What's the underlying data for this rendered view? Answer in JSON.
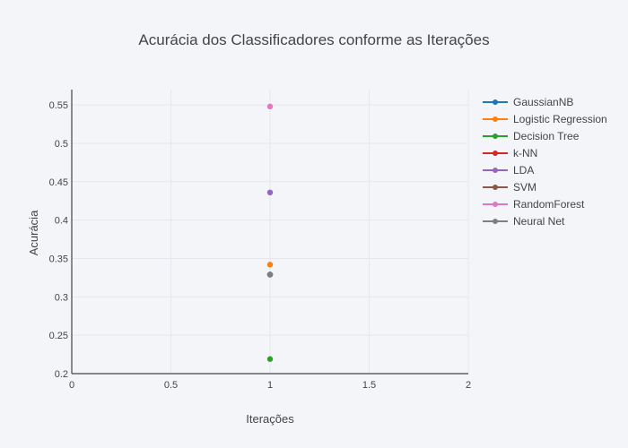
{
  "chart_data": {
    "type": "scatter",
    "title": "Acurácia dos Classificadores conforme as Iterações",
    "xlabel": "Iterações",
    "ylabel": "Acurácia",
    "xlim": [
      0,
      2
    ],
    "ylim": [
      0.2,
      0.57
    ],
    "xticks": [
      "0",
      "0.5",
      "1",
      "1.5",
      "2"
    ],
    "yticks": [
      "0.2",
      "0.25",
      "0.3",
      "0.35",
      "0.4",
      "0.45",
      "0.5",
      "0.55"
    ],
    "grid": true,
    "legend_position": "right",
    "series": [
      {
        "name": "GaussianNB",
        "color": "#1f77b4",
        "x": [
          1
        ],
        "y": [
          0.329
        ]
      },
      {
        "name": "Logistic Regression",
        "color": "#ff7f0e",
        "x": [
          1
        ],
        "y": [
          0.342
        ]
      },
      {
        "name": "Decision Tree",
        "color": "#2ca02c",
        "x": [
          1
        ],
        "y": [
          0.219
        ]
      },
      {
        "name": "k-NN",
        "color": "#d62728",
        "x": [
          1
        ],
        "y": [
          0.329
        ]
      },
      {
        "name": "LDA",
        "color": "#9467bd",
        "x": [
          1
        ],
        "y": [
          0.436
        ]
      },
      {
        "name": "SVM",
        "color": "#8c564b",
        "x": [
          1
        ],
        "y": [
          0.329
        ]
      },
      {
        "name": "RandomForest",
        "color": "#e377c2",
        "x": [
          1
        ],
        "y": [
          0.548
        ]
      },
      {
        "name": "Neural Net",
        "color": "#7f7f7f",
        "x": [
          1
        ],
        "y": [
          0.329
        ]
      }
    ]
  }
}
